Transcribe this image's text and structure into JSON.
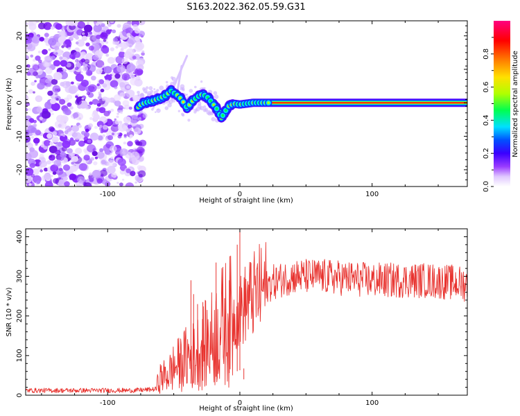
{
  "title": "S163.2022.362.05.59.G31",
  "chart_data": [
    {
      "type": "heatmap",
      "xlabel": "Height of straight line (km)",
      "ylabel": "Frequency (Hz)",
      "xlim": [
        -162,
        172
      ],
      "ylim": [
        -25,
        24.5
      ],
      "xticks": [
        -100,
        0,
        100
      ],
      "yticks": [
        -20,
        -10,
        0,
        10,
        20
      ],
      "colorbar": {
        "label": "Normalized spectral amplitude",
        "ticks": [
          "0.0",
          "0.2",
          "0.4",
          "0.6",
          "0.8"
        ],
        "range": [
          0,
          1
        ],
        "colormap": [
          "#ffffff",
          "#e0c8ff",
          "#9a3cff",
          "#3a00ff",
          "#0050ff",
          "#00e0ff",
          "#00ff50",
          "#b0ff00",
          "#ffe000",
          "#ff8000",
          "#ff0000",
          "#ff0080"
        ]
      },
      "noise_region_x": [
        -162,
        -73
      ],
      "ridge": {
        "x": [
          -77,
          -72,
          -67,
          -62,
          -57,
          -52,
          -48,
          -44,
          -40,
          -36,
          -32,
          -28,
          -24,
          -20,
          -17,
          -14,
          -11,
          -8,
          -4,
          0,
          10,
          30,
          60,
          100,
          140,
          172
        ],
        "y": [
          -1,
          0,
          0.5,
          1.2,
          2,
          3.5,
          2.5,
          1,
          -1.5,
          0.5,
          1.8,
          2.6,
          1.5,
          -0.5,
          -2,
          -4.5,
          -2.5,
          -0.8,
          -0.3,
          -0.5,
          0,
          0,
          0,
          0,
          0,
          0
        ]
      },
      "spurs": [
        {
          "x": [
            -52,
            -40
          ],
          "y": [
            3,
            14
          ]
        },
        {
          "x": [
            -47,
            -44
          ],
          "y": [
            4,
            11
          ]
        }
      ],
      "grid": false
    },
    {
      "type": "line",
      "xlabel": "Height of straight line (km)",
      "ylabel": "SNR (10 * v/v)",
      "xlim": [
        -162,
        172
      ],
      "ylim": [
        0,
        420
      ],
      "xticks": [
        -100,
        0,
        100
      ],
      "yticks": [
        0,
        100,
        200,
        300,
        400
      ],
      "series": [
        {
          "color": "#e8332f",
          "x": [
            -162,
            -140,
            -120,
            -100,
            -80,
            -64,
            -60,
            -55,
            -50,
            -45,
            -40,
            -35,
            -30,
            -25,
            -20,
            -15,
            -10,
            -5,
            0,
            5,
            10,
            15,
            20,
            25,
            30,
            35,
            40,
            60,
            80,
            100,
            120,
            140,
            160,
            172
          ],
          "y": [
            12,
            12,
            12,
            12,
            12,
            15,
            45,
            50,
            70,
            80,
            95,
            100,
            115,
            130,
            145,
            170,
            185,
            190,
            210,
            235,
            250,
            265,
            275,
            285,
            290,
            295,
            300,
            300,
            295,
            290,
            290,
            290,
            285,
            280
          ]
        }
      ],
      "spikes": [
        {
          "x": -37,
          "y": 290
        },
        {
          "x": -35,
          "y": 255
        },
        {
          "x": -32,
          "y": 230
        },
        {
          "x": -28,
          "y": 235
        },
        {
          "x": -18,
          "y": 335
        },
        {
          "x": -8,
          "y": 290
        },
        {
          "x": 0,
          "y": 420
        },
        {
          "x": 3,
          "y": 40
        },
        {
          "x": -2,
          "y": 380
        }
      ],
      "grid": false
    }
  ]
}
